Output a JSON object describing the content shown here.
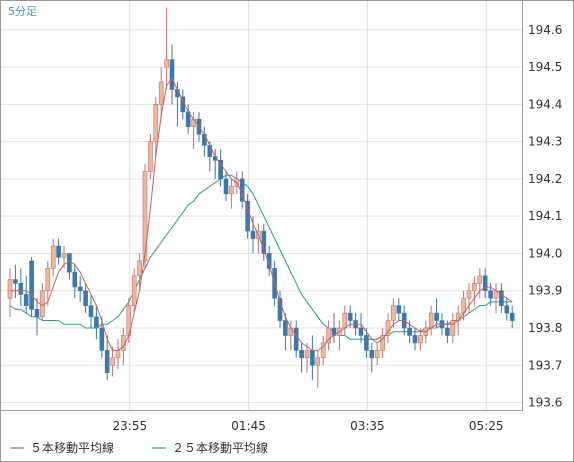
{
  "chart_data": {
    "type": "candlestick",
    "title": "5分足",
    "yticks": [
      "193.6",
      "193.7",
      "193.8",
      "193.9",
      "194.0",
      "194.1",
      "194.2",
      "194.3",
      "194.4",
      "194.5",
      "194.6"
    ],
    "ylim": [
      193.58,
      194.68
    ],
    "xticks": [
      "23:55",
      "01:45",
      "03:35",
      "05:25"
    ],
    "legend": [
      {
        "label": "５本移動平均線",
        "color": "#c86060"
      },
      {
        "label": "２５本移動平均線",
        "color": "#2aa080"
      }
    ],
    "colors": {
      "up": "#f0b898",
      "up_border": "#c87070",
      "down": "#3a78b0",
      "grid": "#e2e2e2"
    },
    "ohlc": [
      [
        193.88,
        193.96,
        193.83,
        193.93
      ],
      [
        193.93,
        193.97,
        193.88,
        193.92
      ],
      [
        193.92,
        193.96,
        193.86,
        193.89
      ],
      [
        193.89,
        193.94,
        193.84,
        193.86
      ],
      [
        193.98,
        193.99,
        193.83,
        193.85
      ],
      [
        193.85,
        193.88,
        193.78,
        193.83
      ],
      [
        193.83,
        193.92,
        193.82,
        193.9
      ],
      [
        193.9,
        193.98,
        193.86,
        193.96
      ],
      [
        193.96,
        194.04,
        193.94,
        194.02
      ],
      [
        194.02,
        194.04,
        193.97,
        193.99
      ],
      [
        193.99,
        194.02,
        193.96,
        194.0
      ],
      [
        194.0,
        194.0,
        193.93,
        193.95
      ],
      [
        193.95,
        193.97,
        193.88,
        193.91
      ],
      [
        193.91,
        193.94,
        193.87,
        193.9
      ],
      [
        193.9,
        193.92,
        193.84,
        193.86
      ],
      [
        193.86,
        193.89,
        193.8,
        193.83
      ],
      [
        193.83,
        193.86,
        193.77,
        193.8
      ],
      [
        193.8,
        193.83,
        193.72,
        193.74
      ],
      [
        193.74,
        193.78,
        193.66,
        193.68
      ],
      [
        193.7,
        193.75,
        193.67,
        193.72
      ],
      [
        193.72,
        193.77,
        193.69,
        193.74
      ],
      [
        193.74,
        193.8,
        193.7,
        193.78
      ],
      [
        193.78,
        193.88,
        193.76,
        193.86
      ],
      [
        193.86,
        193.96,
        193.84,
        193.94
      ],
      [
        193.94,
        194.0,
        193.9,
        193.98
      ],
      [
        193.98,
        194.24,
        193.96,
        194.22
      ],
      [
        194.22,
        194.32,
        194.2,
        194.3
      ],
      [
        194.3,
        194.42,
        194.26,
        194.4
      ],
      [
        194.4,
        194.5,
        194.36,
        194.46
      ],
      [
        194.5,
        194.66,
        194.44,
        194.52
      ],
      [
        194.52,
        194.56,
        194.4,
        194.44
      ],
      [
        194.44,
        194.46,
        194.34,
        194.42
      ],
      [
        194.42,
        194.44,
        194.36,
        194.38
      ],
      [
        194.38,
        194.4,
        194.32,
        194.34
      ],
      [
        194.34,
        194.38,
        194.28,
        194.36
      ],
      [
        194.36,
        194.38,
        194.3,
        194.32
      ],
      [
        194.32,
        194.34,
        194.26,
        194.29
      ],
      [
        194.29,
        194.3,
        194.22,
        194.26
      ],
      [
        194.26,
        194.28,
        194.2,
        194.25
      ],
      [
        194.25,
        194.28,
        194.18,
        194.2
      ],
      [
        194.2,
        194.22,
        194.14,
        194.16
      ],
      [
        194.16,
        194.2,
        194.12,
        194.18
      ],
      [
        194.18,
        194.22,
        194.16,
        194.2
      ],
      [
        194.2,
        194.22,
        194.12,
        194.14
      ],
      [
        194.14,
        194.16,
        194.04,
        194.06
      ],
      [
        194.06,
        194.1,
        194.0,
        194.04
      ],
      [
        194.04,
        194.08,
        194.0,
        194.06
      ],
      [
        194.06,
        194.08,
        193.98,
        194.0
      ],
      [
        194.0,
        194.02,
        193.94,
        193.96
      ],
      [
        193.96,
        193.98,
        193.86,
        193.88
      ],
      [
        193.88,
        193.9,
        193.8,
        193.82
      ],
      [
        193.82,
        193.84,
        193.74,
        193.78
      ],
      [
        193.78,
        193.82,
        193.74,
        193.8
      ],
      [
        193.8,
        193.82,
        193.72,
        193.74
      ],
      [
        193.74,
        193.76,
        193.68,
        193.72
      ],
      [
        193.72,
        193.76,
        193.68,
        193.74
      ],
      [
        193.74,
        193.78,
        193.66,
        193.7
      ],
      [
        193.7,
        193.74,
        193.64,
        193.72
      ],
      [
        193.72,
        193.78,
        193.7,
        193.76
      ],
      [
        193.76,
        193.82,
        193.74,
        193.8
      ],
      [
        193.8,
        193.84,
        193.76,
        193.78
      ],
      [
        193.78,
        193.82,
        193.74,
        193.8
      ],
      [
        193.8,
        193.86,
        193.78,
        193.84
      ],
      [
        193.84,
        193.86,
        193.8,
        193.82
      ],
      [
        193.82,
        193.84,
        193.78,
        193.8
      ],
      [
        193.8,
        193.84,
        193.76,
        193.78
      ],
      [
        193.78,
        193.8,
        193.72,
        193.74
      ],
      [
        193.74,
        193.76,
        193.68,
        193.72
      ],
      [
        193.72,
        193.76,
        193.7,
        193.74
      ],
      [
        193.74,
        193.8,
        193.72,
        193.78
      ],
      [
        193.78,
        193.84,
        193.76,
        193.82
      ],
      [
        193.82,
        193.88,
        193.8,
        193.86
      ],
      [
        193.86,
        193.88,
        193.82,
        193.84
      ],
      [
        193.84,
        193.86,
        193.78,
        193.8
      ],
      [
        193.8,
        193.82,
        193.76,
        193.78
      ],
      [
        193.78,
        193.8,
        193.74,
        193.76
      ],
      [
        193.76,
        193.8,
        193.74,
        193.78
      ],
      [
        193.78,
        193.82,
        193.76,
        193.8
      ],
      [
        193.8,
        193.86,
        193.78,
        193.84
      ],
      [
        193.84,
        193.88,
        193.8,
        193.82
      ],
      [
        193.82,
        193.84,
        193.78,
        193.8
      ],
      [
        193.8,
        193.82,
        193.76,
        193.78
      ],
      [
        193.78,
        193.84,
        193.76,
        193.82
      ],
      [
        193.82,
        193.86,
        193.78,
        193.84
      ],
      [
        193.84,
        193.9,
        193.82,
        193.88
      ],
      [
        193.88,
        193.92,
        193.84,
        193.9
      ],
      [
        193.9,
        193.94,
        193.86,
        193.92
      ],
      [
        193.92,
        193.96,
        193.88,
        193.94
      ],
      [
        193.94,
        193.96,
        193.88,
        193.9
      ],
      [
        193.9,
        193.92,
        193.86,
        193.88
      ],
      [
        193.88,
        193.92,
        193.84,
        193.9
      ],
      [
        193.9,
        193.92,
        193.84,
        193.86
      ],
      [
        193.86,
        193.88,
        193.82,
        193.84
      ],
      [
        193.84,
        193.86,
        193.8,
        193.82
      ]
    ],
    "ma5": [
      193.9,
      193.9,
      193.9,
      193.9,
      193.89,
      193.87,
      193.86,
      193.87,
      193.91,
      193.95,
      193.97,
      193.98,
      193.97,
      193.95,
      193.92,
      193.89,
      193.86,
      193.82,
      193.77,
      193.74,
      193.74,
      193.75,
      193.78,
      193.84,
      193.9,
      194.0,
      194.12,
      194.26,
      194.37,
      194.45,
      194.47,
      194.44,
      194.41,
      194.38,
      194.36,
      194.34,
      194.32,
      194.29,
      194.26,
      194.24,
      194.22,
      194.2,
      194.19,
      194.16,
      194.12,
      194.08,
      194.05,
      194.01,
      193.97,
      193.92,
      193.87,
      193.83,
      193.8,
      193.78,
      193.76,
      193.75,
      193.74,
      193.74,
      193.75,
      193.77,
      193.78,
      193.79,
      193.8,
      193.81,
      193.81,
      193.81,
      193.79,
      193.77,
      193.76,
      193.77,
      193.79,
      193.81,
      193.82,
      193.82,
      193.81,
      193.8,
      193.79,
      193.79,
      193.8,
      193.81,
      193.81,
      193.81,
      193.81,
      193.82,
      193.84,
      193.86,
      193.88,
      193.9,
      193.91,
      193.91,
      193.9,
      193.89,
      193.88,
      193.87
    ],
    "ma25": [
      193.86,
      193.85,
      193.85,
      193.84,
      193.83,
      193.83,
      193.82,
      193.82,
      193.82,
      193.82,
      193.81,
      193.81,
      193.81,
      193.81,
      193.8,
      193.8,
      193.8,
      193.81,
      193.81,
      193.82,
      193.83,
      193.85,
      193.87,
      193.9,
      193.93,
      193.96,
      193.99,
      194.01,
      194.03,
      194.05,
      194.07,
      194.09,
      194.11,
      194.13,
      194.14,
      194.16,
      194.17,
      194.18,
      194.19,
      194.2,
      194.21,
      194.21,
      194.2,
      194.19,
      194.18,
      194.16,
      194.13,
      194.1,
      194.07,
      194.04,
      194.01,
      193.98,
      193.95,
      193.92,
      193.89,
      193.87,
      193.85,
      193.83,
      193.81,
      193.8,
      193.79,
      193.78,
      193.78,
      193.77,
      193.77,
      193.77,
      193.77,
      193.77,
      193.77,
      193.78,
      193.78,
      193.79,
      193.79,
      193.79,
      193.79,
      193.79,
      193.79,
      193.8,
      193.8,
      193.8,
      193.81,
      193.81,
      193.82,
      193.82,
      193.83,
      193.84,
      193.85,
      193.86,
      193.86,
      193.87,
      193.87,
      193.87,
      193.87,
      193.87
    ]
  }
}
